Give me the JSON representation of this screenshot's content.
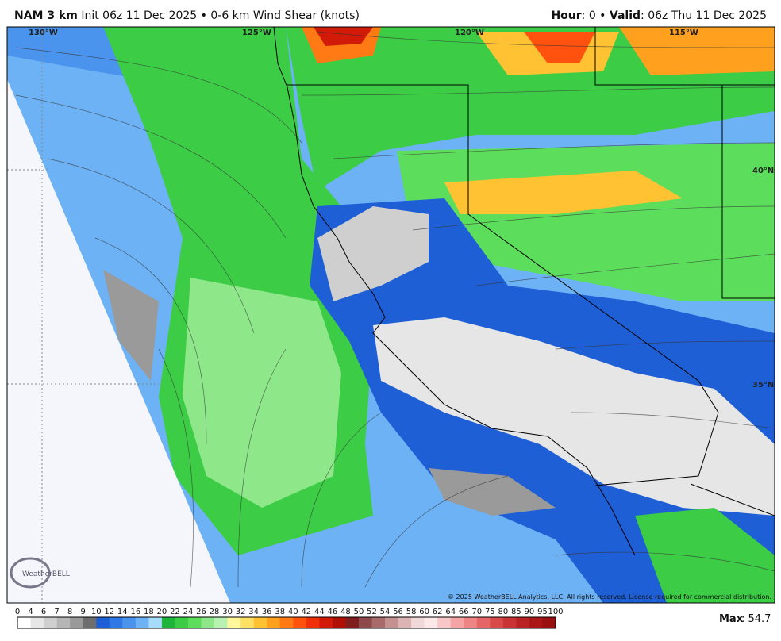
{
  "header": {
    "model": "NAM 3 km",
    "description": "Init 06z 11 Dec 2025 • 0-6 km Wind Shear (knots)",
    "hour_label": "Hour",
    "hour": ": 0 • ",
    "valid_label": "Valid",
    "valid": ": 06z Thu 11 Dec 2025"
  },
  "map": {
    "labels": [
      "130°W",
      "125°W",
      "120°W",
      "115°W",
      "40°N",
      "35°N"
    ],
    "copyright": "© 2025 WeatherBELL Analytics, LLC. All rights reserved. License required for commercial distribution.",
    "logo": "WeatherBELL"
  },
  "colorbar": {
    "labels": [
      "0",
      "4",
      "6",
      "7",
      "8",
      "9",
      "10",
      "12",
      "14",
      "16",
      "18",
      "20",
      "22",
      "24",
      "26",
      "28",
      "30",
      "32",
      "34",
      "36",
      "38",
      "40",
      "42",
      "44",
      "46",
      "48",
      "50",
      "52",
      "54",
      "56",
      "58",
      "60",
      "62",
      "64",
      "66",
      "70",
      "75",
      "80",
      "85",
      "90",
      "95",
      "100"
    ],
    "colors": [
      "#ffffff",
      "#e6e6e6",
      "#cfcfcf",
      "#b5b5b5",
      "#9a9a9a",
      "#6e6e6e",
      "#1f5fd6",
      "#2f78e6",
      "#4a94ee",
      "#6db2f5",
      "#a6dcfa",
      "#1fb53a",
      "#3ccc46",
      "#5cde5c",
      "#8ee88a",
      "#b8f2b0",
      "#fff79a",
      "#ffe066",
      "#ffc233",
      "#ffa01e",
      "#ff7a14",
      "#ff520f",
      "#f0300a",
      "#d21a08",
      "#b00f06",
      "#7f1d1d",
      "#8e4a4a",
      "#a86a6a",
      "#c49090",
      "#dcb4b4",
      "#f0d8d8",
      "#fce8e8",
      "#f8c8c8",
      "#f4a4a4",
      "#ee8484",
      "#e46666",
      "#d84a4a",
      "#c83434",
      "#b82222",
      "#a81616",
      "#981010"
    ],
    "max_label": "Max",
    "max": ": 54.7"
  }
}
